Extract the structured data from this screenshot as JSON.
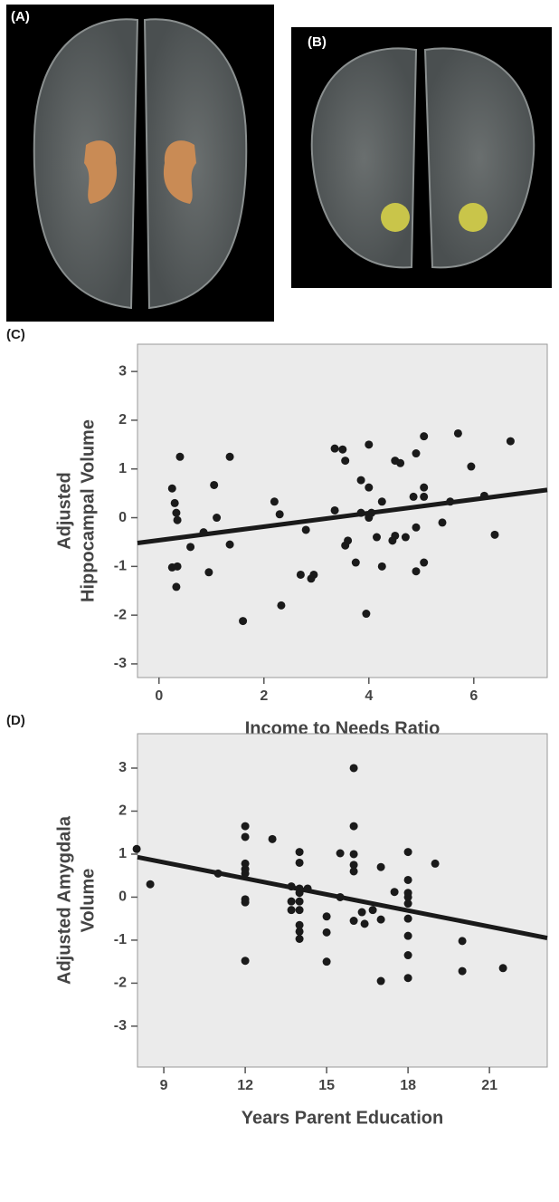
{
  "panels": {
    "a_label": "(A)",
    "b_label": "(B)"
  },
  "chart_data": [
    {
      "type": "scatter",
      "label": "(C)",
      "ylabel": [
        "Adjusted",
        "Hippocampal Volume"
      ],
      "xlabel": "Income to Needs Ratio",
      "color": "#1a1a1a",
      "xlim": [
        -0.41,
        7.4
      ],
      "ylim": [
        -3.28,
        3.56
      ],
      "xticks": [
        0,
        2,
        4,
        6
      ],
      "yticks": [
        -3,
        -2,
        -1,
        0,
        1,
        2,
        3
      ],
      "trend_line": {
        "x": [
          -0.41,
          7.4
        ],
        "y": [
          -0.52,
          0.57
        ]
      },
      "x": [
        0.25,
        0.3,
        0.33,
        0.35,
        0.4,
        0.25,
        0.35,
        0.33,
        0.6,
        0.85,
        0.95,
        1.05,
        1.1,
        1.35,
        1.35,
        1.6,
        2.2,
        2.3,
        2.33,
        2.7,
        2.8,
        2.9,
        2.95,
        3.35,
        3.35,
        3.5,
        3.55,
        3.55,
        3.6,
        3.75,
        3.85,
        3.85,
        3.95,
        4.0,
        4.0,
        4.0,
        4.05,
        4.15,
        4.25,
        4.25,
        4.45,
        4.5,
        4.5,
        4.6,
        4.7,
        4.85,
        4.9,
        4.9,
        4.9,
        5.05,
        5.05,
        5.05,
        5.05,
        5.4,
        5.55,
        5.7,
        5.95,
        6.2,
        6.4,
        6.7
      ],
      "y": [
        0.6,
        0.3,
        0.1,
        -0.05,
        1.25,
        -1.02,
        -1.0,
        -1.42,
        -0.6,
        -0.3,
        -1.12,
        0.67,
        0.0,
        1.25,
        -0.55,
        -2.12,
        0.33,
        0.07,
        -1.8,
        -1.17,
        -0.25,
        -1.25,
        -1.17,
        0.15,
        1.42,
        1.4,
        1.17,
        -0.57,
        -0.47,
        -0.92,
        0.77,
        0.1,
        -1.97,
        0.62,
        1.5,
        0.0,
        0.1,
        -0.4,
        0.33,
        -1.0,
        -0.47,
        -0.37,
        1.17,
        1.12,
        -0.4,
        0.43,
        -0.2,
        1.32,
        -1.1,
        0.43,
        0.62,
        1.67,
        -0.92,
        -0.1,
        0.33,
        1.73,
        1.05,
        0.45,
        -0.35,
        1.57
      ]
    },
    {
      "type": "scatter",
      "label": "(D)",
      "ylabel": [
        "Adjusted Amygdala",
        "Volume"
      ],
      "xlabel": "Years Parent Education",
      "color": "#1a1a1a",
      "xlim": [
        8.03,
        23.13
      ],
      "ylim": [
        -3.95,
        3.8
      ],
      "xticks": [
        9,
        12,
        15,
        18,
        21
      ],
      "yticks": [
        -3,
        -2,
        -1,
        0,
        1,
        2,
        3
      ],
      "trend_line": {
        "x": [
          8.03,
          23.13
        ],
        "y": [
          0.93,
          -0.95
        ]
      },
      "x": [
        8,
        8.5,
        11,
        12,
        12,
        12,
        12,
        12,
        12,
        12,
        12,
        13,
        13.7,
        13.7,
        13.7,
        14,
        14,
        14,
        14,
        14,
        14,
        14,
        14,
        14,
        14.3,
        15,
        15,
        15,
        15.5,
        15.5,
        16,
        16,
        16,
        16,
        16,
        16,
        16.3,
        16.4,
        16.7,
        17,
        17,
        17,
        17.5,
        18,
        18,
        18,
        18,
        18,
        18,
        18,
        18,
        18,
        19,
        20,
        20,
        21.5
      ],
      "y": [
        1.12,
        0.3,
        0.55,
        1.65,
        1.4,
        0.78,
        0.65,
        0.55,
        -0.05,
        -0.12,
        -1.48,
        1.35,
        0.25,
        -0.1,
        -0.3,
        1.05,
        0.8,
        0.2,
        0.1,
        -0.1,
        -0.3,
        -0.65,
        -0.8,
        -0.97,
        0.2,
        -0.45,
        -0.82,
        -1.5,
        1.02,
        0,
        3.0,
        1.65,
        1.0,
        0.75,
        0.6,
        -0.55,
        -0.35,
        -0.62,
        -0.3,
        0.7,
        -0.52,
        -1.95,
        0.12,
        1.05,
        0.4,
        0.1,
        0,
        -0.15,
        -0.5,
        -0.9,
        -1.35,
        -1.88,
        0.78,
        -1.02,
        -1.72,
        -1.65
      ]
    }
  ]
}
